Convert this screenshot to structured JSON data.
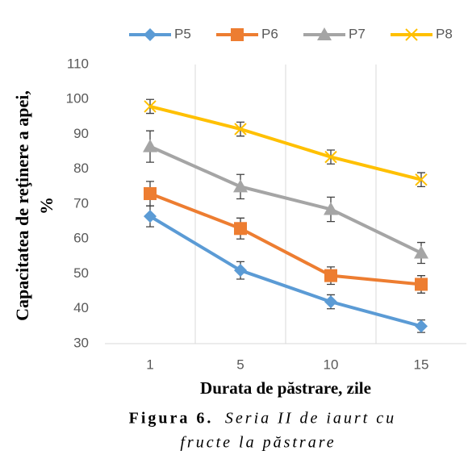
{
  "chart_data": {
    "type": "line",
    "ylabel": [
      "Capacitatea de reţinere a apei,",
      "%"
    ],
    "xlabel": "Durata de păstrare, zile",
    "caption": {
      "label": "Figura 6.",
      "lines": [
        "Seria II de iaurt cu",
        "fructe la păstrare"
      ]
    },
    "categories": [
      "1",
      "5",
      "10",
      "15"
    ],
    "series": [
      {
        "name": "P5",
        "color": "#5b9bd5",
        "marker": "diamond",
        "values": [
          66.5,
          51,
          42,
          35
        ],
        "errors": [
          3,
          2.5,
          2,
          1.8
        ]
      },
      {
        "name": "P6",
        "color": "#ed7d31",
        "marker": "square",
        "values": [
          73,
          63,
          49.5,
          47
        ],
        "errors": [
          3.5,
          3,
          2.5,
          2.5
        ]
      },
      {
        "name": "P7",
        "color": "#a5a5a5",
        "marker": "triangle",
        "values": [
          86.5,
          75,
          68.5,
          56
        ],
        "errors": [
          4.5,
          3.5,
          3.5,
          3
        ]
      },
      {
        "name": "P8",
        "color": "#ffc000",
        "marker": "x",
        "values": [
          98,
          91.5,
          83.5,
          77
        ],
        "errors": [
          2,
          2,
          2,
          2
        ]
      }
    ],
    "ylim": [
      30,
      110
    ],
    "yticks": [
      30,
      40,
      50,
      60,
      70,
      80,
      90,
      100,
      110
    ],
    "legend": "top",
    "grid": "category"
  }
}
